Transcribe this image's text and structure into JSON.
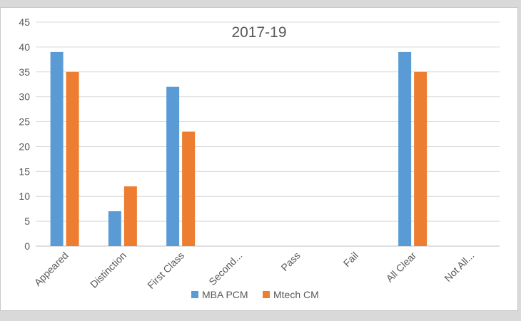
{
  "chart_data": {
    "type": "bar",
    "title": "2017-19",
    "xlabel": "",
    "ylabel": "",
    "categories": [
      "Appeared",
      "Distinction",
      "First Class",
      "Second...",
      "Pass",
      "Fail",
      "All Clear",
      "Not All..."
    ],
    "series": [
      {
        "name": "MBA PCM",
        "color": "#5b9bd5",
        "values": [
          39,
          7,
          32,
          0,
          0,
          0,
          39,
          0
        ]
      },
      {
        "name": "Mtech CM",
        "color": "#ed7d31",
        "values": [
          35,
          12,
          23,
          0,
          0,
          0,
          35,
          0
        ]
      }
    ],
    "ylim": [
      0,
      45
    ],
    "yticks": [
      0,
      5,
      10,
      15,
      20,
      25,
      30,
      35,
      40,
      45
    ],
    "grid": true,
    "legend": "bottom"
  }
}
